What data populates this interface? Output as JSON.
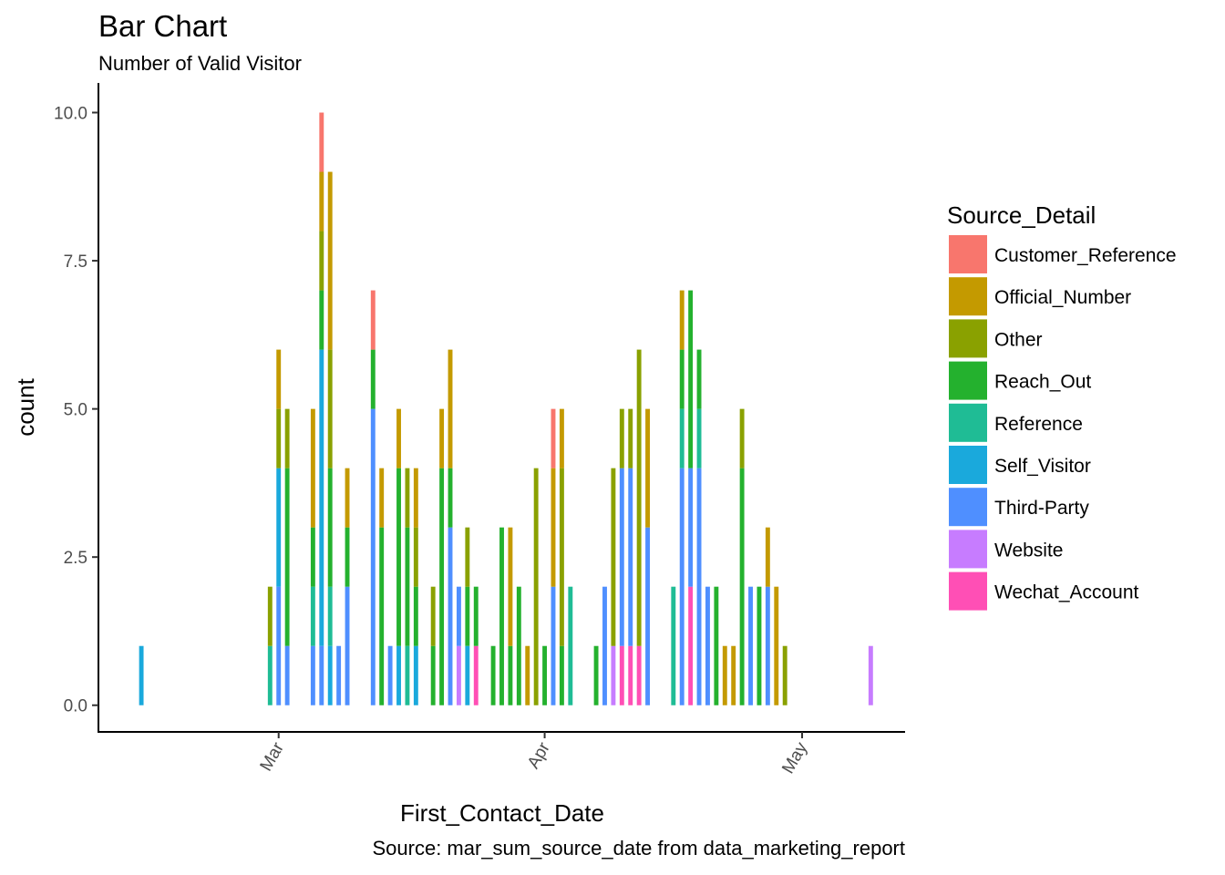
{
  "chart_data": {
    "type": "bar",
    "stacked": true,
    "title": "Bar Chart",
    "subtitle": "Number of Valid Visitor",
    "caption": "Source: mar_sum_source_date from data_marketing_report",
    "xlabel": "First_Contact_Date",
    "ylabel": "count",
    "x_ticks": [
      {
        "label": "Mar",
        "date": "2017-03-01"
      },
      {
        "label": "Apr",
        "date": "2017-04-01"
      },
      {
        "label": "May",
        "date": "2017-05-01"
      }
    ],
    "x_range": [
      "2017-02-08",
      "2017-05-13"
    ],
    "y_ticks": [
      "0.0",
      "2.5",
      "5.0",
      "7.5",
      "10.0"
    ],
    "ylim": [
      -0.45,
      10.5
    ],
    "grid": false,
    "legend_position": "right",
    "legend_title": "Source_Detail",
    "series": [
      {
        "name": "Customer_Reference",
        "color": "#F8766D"
      },
      {
        "name": "Official_Number",
        "color": "#C49A00"
      },
      {
        "name": "Other",
        "color": "#8AA100"
      },
      {
        "name": "Reach_Out",
        "color": "#24B12E"
      },
      {
        "name": "Reference",
        "color": "#1FBC95"
      },
      {
        "name": "Self_Visitor",
        "color": "#1AA9DC"
      },
      {
        "name": "Third-Party",
        "color": "#4F8FFF"
      },
      {
        "name": "Website",
        "color": "#C77CFF"
      },
      {
        "name": "Wechat_Account",
        "color": "#FF4FB5"
      }
    ],
    "data": [
      {
        "date": "2017-02-13",
        "counts": {
          "Self_Visitor": 1
        }
      },
      {
        "date": "2017-02-28",
        "counts": {
          "Reference": 1,
          "Other": 1
        }
      },
      {
        "date": "2017-03-01",
        "counts": {
          "Third-Party": 2,
          "Self_Visitor": 2,
          "Other": 1,
          "Official_Number": 1
        }
      },
      {
        "date": "2017-03-02",
        "counts": {
          "Third-Party": 1,
          "Reach_Out": 3,
          "Other": 1
        }
      },
      {
        "date": "2017-03-05",
        "counts": {
          "Third-Party": 1,
          "Reference": 1,
          "Reach_Out": 1,
          "Official_Number": 2
        }
      },
      {
        "date": "2017-03-06",
        "counts": {
          "Third-Party": 1,
          "Self_Visitor": 5,
          "Reach_Out": 1,
          "Other": 1,
          "Official_Number": 1,
          "Customer_Reference": 1
        }
      },
      {
        "date": "2017-03-07",
        "counts": {
          "Self_Visitor": 1,
          "Reference": 1,
          "Reach_Out": 2,
          "Reach_Out_x": 0,
          "Other": 2,
          "Official_Number": 3
        }
      },
      {
        "date": "2017-03-08",
        "counts": {
          "Third-Party": 1
        }
      },
      {
        "date": "2017-03-09",
        "counts": {
          "Third-Party": 2,
          "Reach_Out": 1,
          "Official_Number": 1
        }
      },
      {
        "date": "2017-03-12",
        "counts": {
          "Third-Party": 5,
          "Reach_Out": 1,
          "Customer_Reference": 1
        }
      },
      {
        "date": "2017-03-13",
        "counts": {
          "Reach_Out": 3,
          "Official_Number": 1
        }
      },
      {
        "date": "2017-03-14",
        "counts": {
          "Third-Party": 1
        }
      },
      {
        "date": "2017-03-15",
        "counts": {
          "Self_Visitor": 1,
          "Reach_Out": 3,
          "Official_Number": 1
        }
      },
      {
        "date": "2017-03-16",
        "counts": {
          "Reference": 1,
          "Reach_Out": 2,
          "Other": 1
        }
      },
      {
        "date": "2017-03-17",
        "counts": {
          "Self_Visitor": 1,
          "Reach_Out": 1,
          "Other": 1,
          "Official_Number": 1
        }
      },
      {
        "date": "2017-03-19",
        "counts": {
          "Reach_Out": 1,
          "Other": 1
        }
      },
      {
        "date": "2017-03-20",
        "counts": {
          "Reach_Out": 4,
          "Official_Number": 1
        }
      },
      {
        "date": "2017-03-21",
        "counts": {
          "Third-Party": 3,
          "Reach_Out": 1,
          "Official_Number": 2
        }
      },
      {
        "date": "2017-03-22",
        "counts": {
          "Third-Party": 1,
          "Website": 1
        }
      },
      {
        "date": "2017-03-23",
        "counts": {
          "Self_Visitor": 1,
          "Reach_Out": 1,
          "Other": 1
        }
      },
      {
        "date": "2017-03-24",
        "counts": {
          "Wechat_Account": 1,
          "Reach_Out": 1
        }
      },
      {
        "date": "2017-03-26",
        "counts": {
          "Reach_Out": 1
        }
      },
      {
        "date": "2017-03-27",
        "counts": {
          "Reach_Out": 3
        }
      },
      {
        "date": "2017-03-28",
        "counts": {
          "Reach_Out": 1,
          "Official_Number": 2
        }
      },
      {
        "date": "2017-03-29",
        "counts": {
          "Reach_Out": 2
        }
      },
      {
        "date": "2017-03-30",
        "counts": {
          "Official_Number": 1
        }
      },
      {
        "date": "2017-03-31",
        "counts": {
          "Other": 4
        }
      },
      {
        "date": "2017-04-01",
        "counts": {
          "Reach_Out": 1
        }
      },
      {
        "date": "2017-04-02",
        "counts": {
          "Third-Party": 2,
          "Official_Number": 2,
          "Customer_Reference": 1
        }
      },
      {
        "date": "2017-04-03",
        "counts": {
          "Reach_Out": 1,
          "Other": 3,
          "Official_Number": 1
        }
      },
      {
        "date": "2017-04-04",
        "counts": {
          "Reference": 2
        }
      },
      {
        "date": "2017-04-07",
        "counts": {
          "Reach_Out": 1
        }
      },
      {
        "date": "2017-04-08",
        "counts": {
          "Third-Party": 2,
          "Website": 0
        }
      },
      {
        "date": "2017-04-09",
        "counts": {
          "Website": 1,
          "Other": 3
        }
      },
      {
        "date": "2017-04-10",
        "counts": {
          "Third-Party": 3,
          "Wechat_Account": 1,
          "Other": 1
        }
      },
      {
        "date": "2017-04-11",
        "counts": {
          "Wechat_Account": 1,
          "Third-Party": 3,
          "Other": 1
        }
      },
      {
        "date": "2017-04-12",
        "counts": {
          "Wechat_Account": 1,
          "Other": 5
        }
      },
      {
        "date": "2017-04-13",
        "counts": {
          "Third-Party": 3,
          "Official_Number": 2
        }
      },
      {
        "date": "2017-04-16",
        "counts": {
          "Reference": 2
        }
      },
      {
        "date": "2017-04-17",
        "counts": {
          "Third-Party": 4,
          "Reference": 1,
          "Reach_Out": 1,
          "Official_Number": 1
        }
      },
      {
        "date": "2017-04-18",
        "counts": {
          "Wechat_Account": 2,
          "Third-Party": 2,
          "Reach_Out": 3
        }
      },
      {
        "date": "2017-04-19",
        "counts": {
          "Third-Party": 4,
          "Reference": 1,
          "Reach_Out": 1
        }
      },
      {
        "date": "2017-04-20",
        "counts": {
          "Third-Party": 2
        }
      },
      {
        "date": "2017-04-21",
        "counts": {
          "Reach_Out": 2
        }
      },
      {
        "date": "2017-04-22",
        "counts": {
          "Official_Number": 1
        }
      },
      {
        "date": "2017-04-23",
        "counts": {
          "Official_Number": 1
        }
      },
      {
        "date": "2017-04-24",
        "counts": {
          "Reach_Out": 4,
          "Other": 1
        }
      },
      {
        "date": "2017-04-25",
        "counts": {
          "Third-Party": 2
        }
      },
      {
        "date": "2017-04-26",
        "counts": {
          "Reach_Out": 2
        }
      },
      {
        "date": "2017-04-27",
        "counts": {
          "Third-Party": 2,
          "Official_Number": 1
        }
      },
      {
        "date": "2017-04-28",
        "counts": {
          "Official_Number": 2
        }
      },
      {
        "date": "2017-04-29",
        "counts": {
          "Other": 1
        }
      },
      {
        "date": "2017-05-09",
        "counts": {
          "Website": 1
        }
      }
    ]
  }
}
